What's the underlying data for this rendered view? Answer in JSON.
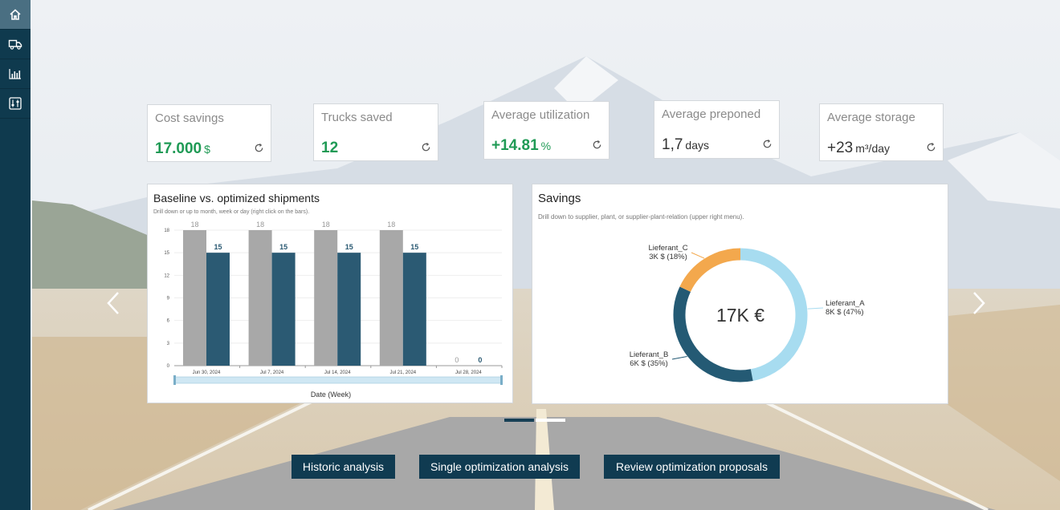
{
  "sidebar": {
    "items": [
      {
        "icon": "home-icon",
        "active": true
      },
      {
        "icon": "truck-icon",
        "active": false
      },
      {
        "icon": "bar-chart-icon",
        "active": false
      },
      {
        "icon": "sliders-icon",
        "active": false
      }
    ]
  },
  "kpis": [
    {
      "title": "Cost savings",
      "value": "17.000",
      "unit": "$",
      "color": "#1f9a55"
    },
    {
      "title": "Trucks saved",
      "value": "12",
      "unit": "",
      "color": "#1f9a55"
    },
    {
      "title": "Average utilization",
      "value": "+14.81",
      "unit": "%",
      "color": "#1f9a55"
    },
    {
      "title": "Average preponed",
      "value": "1,7",
      "unit": "days",
      "color": "#333333"
    },
    {
      "title": "Average storage",
      "value": "+23",
      "unit": "m³/day",
      "color": "#333333"
    }
  ],
  "shipments": {
    "title": "Baseline vs. optimized shipments",
    "subtitle": "Drill down or up to month, week or day (right click on the bars).",
    "xlabel": "Date (Week)"
  },
  "savings": {
    "title": "Savings",
    "subtitle": "Drill down to supplier, plant, or supplier-plant-relation (upper right menu).",
    "center_label": "17K €",
    "slices": [
      {
        "name": "Lieferant_A",
        "label": "8K $ (47%)"
      },
      {
        "name": "Lieferant_B",
        "label": "6K $ (35%)"
      },
      {
        "name": "Lieferant_C",
        "label": "3K $ (18%)"
      }
    ]
  },
  "chart_data": [
    {
      "type": "bar",
      "title": "Baseline vs. optimized shipments",
      "xlabel": "Date (Week)",
      "categories": [
        "Jun 30, 2024",
        "Jul 7, 2024",
        "Jul 14, 2024",
        "Jul 21, 2024",
        "Jul 28, 2024"
      ],
      "series": [
        {
          "values": [
            18,
            18,
            18,
            18,
            0
          ],
          "color": "#a8a8a8"
        },
        {
          "values": [
            15,
            15,
            15,
            15,
            0
          ],
          "color": "#2b5a73"
        }
      ],
      "yticks": [
        0,
        3,
        6,
        9,
        12,
        15,
        18
      ],
      "ylim": [
        0,
        18
      ]
    },
    {
      "type": "pie",
      "title": "Savings",
      "center_label": "17K €",
      "categories": [
        "Lieferant_A",
        "Lieferant_B",
        "Lieferant_C"
      ],
      "values": [
        47,
        35,
        18
      ],
      "colors": [
        "#a7dcf0",
        "#245a74",
        "#f3a84d"
      ]
    }
  ],
  "carousel": {
    "slides": 2,
    "active": 0
  },
  "actions": {
    "historic": "Historic analysis",
    "single": "Single optimization analysis",
    "review": "Review optimization proposals"
  }
}
